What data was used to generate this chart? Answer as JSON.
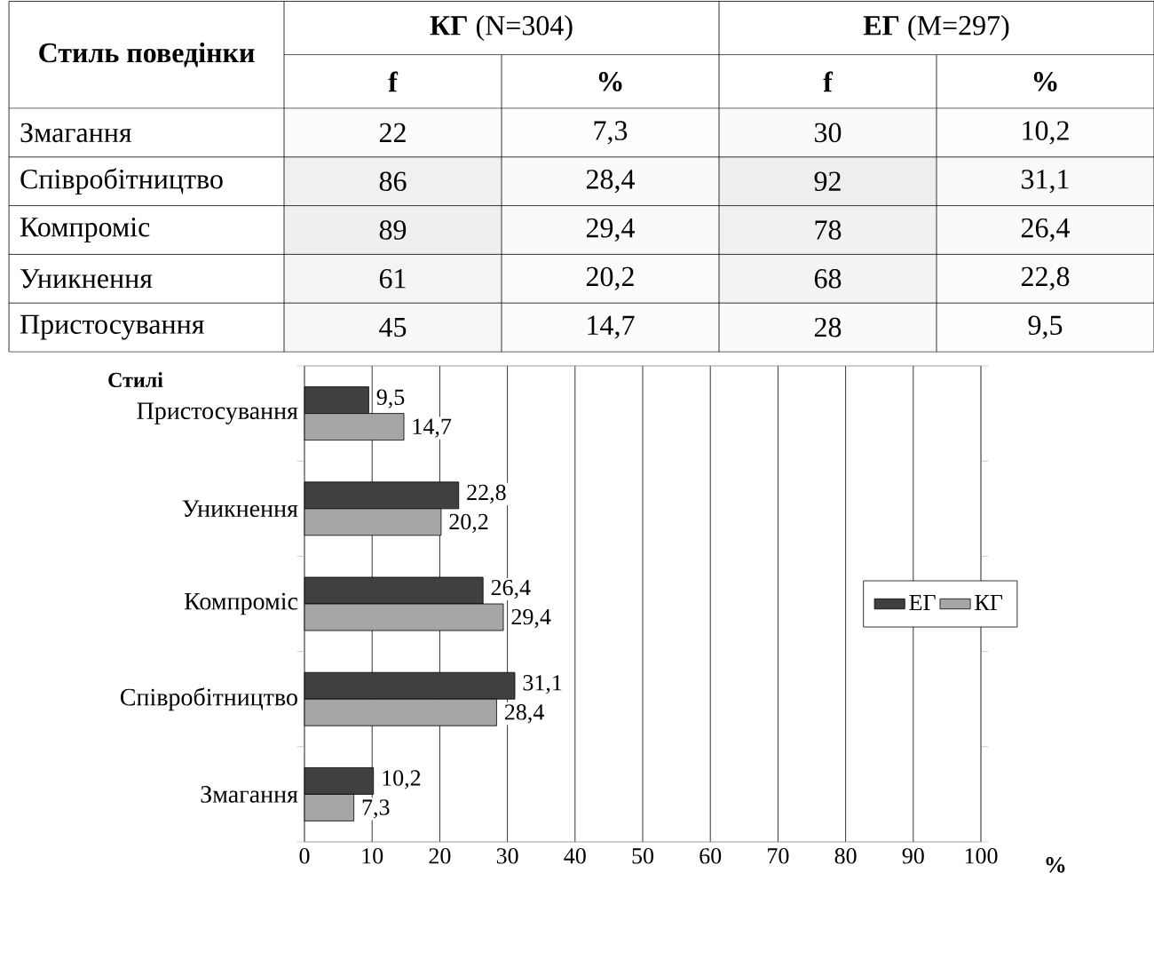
{
  "chart_data": [
    {
      "type": "heatmap",
      "ylabel": "Стиль поведінки",
      "categories": [
        "f",
        "%",
        "f",
        "%"
      ],
      "y_categories": [
        "Змагання",
        "Співробітництво",
        "Компроміс",
        "Уникнення",
        "Пристосування"
      ],
      "cells": [
        [
          22,
          7.3,
          30,
          10.2
        ],
        [
          86,
          28.4,
          92,
          31.1
        ],
        [
          89,
          29.4,
          78,
          26.4
        ],
        [
          61,
          20.2,
          68,
          22.8
        ],
        [
          45,
          14.7,
          28,
          9.5
        ]
      ],
      "cell_labels": [
        [
          "22",
          "7,3",
          "30",
          "10,2"
        ],
        [
          "86",
          "28,4",
          "92",
          "31,1"
        ],
        [
          "89",
          "29,4",
          "78",
          "26,4"
        ],
        [
          "61",
          "20,2",
          "68",
          "22,8"
        ],
        [
          "45",
          "14,7",
          "28",
          "9,5"
        ]
      ],
      "annotations": [
        "**КГ** (N=304)",
        "**ЕГ** (M=297)"
      ]
    },
    {
      "type": "bar",
      "orientation": "horizontal",
      "ylabel": "Стилі",
      "xlabel": "%",
      "categories": [
        "Пристосування",
        "Уникнення",
        "Компроміс",
        "Співробітництво",
        "Змагання"
      ],
      "series": [
        {
          "name": "ЕГ",
          "color": "#404040",
          "values": [
            9.5,
            22.8,
            26.4,
            31.1,
            10.2
          ],
          "value_labels": [
            "9,5",
            "22,8",
            "26,4",
            "31,1",
            "10,2"
          ]
        },
        {
          "name": "КГ",
          "color": "#a6a6a6",
          "values": [
            14.7,
            20.2,
            29.4,
            28.4,
            7.3
          ],
          "value_labels": [
            "14,7",
            "20,2",
            "29,4",
            "28,4",
            "7,3"
          ]
        }
      ],
      "xlim": [
        0,
        100
      ],
      "xticks": [
        0,
        10,
        20,
        30,
        40,
        50,
        60,
        70,
        80,
        90,
        100
      ],
      "grid": "x",
      "legend": "right"
    }
  ]
}
